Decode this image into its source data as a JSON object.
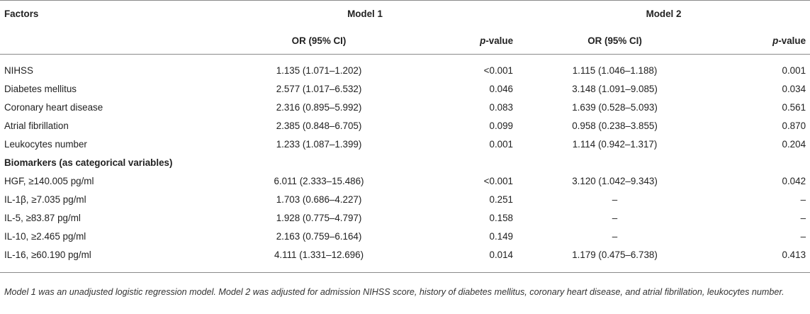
{
  "table": {
    "header": {
      "factors": "Factors",
      "model1": "Model 1",
      "model2": "Model 2",
      "or_ci": "OR (95% CI)",
      "p_italic": "p",
      "p_rest": "-value"
    },
    "rows_a": [
      {
        "factor": "NIHSS",
        "m1_or": "1.135 (1.071–1.202)",
        "m1_p": "<0.001",
        "m2_or": "1.115 (1.046–1.188)",
        "m2_p": "0.001"
      },
      {
        "factor": "Diabetes mellitus",
        "m1_or": "2.577 (1.017–6.532)",
        "m1_p": "0.046",
        "m2_or": "3.148 (1.091–9.085)",
        "m2_p": "0.034"
      },
      {
        "factor": "Coronary heart disease",
        "m1_or": "2.316 (0.895–5.992)",
        "m1_p": "0.083",
        "m2_or": "1.639 (0.528–5.093)",
        "m2_p": "0.561"
      },
      {
        "factor": "Atrial fibrillation",
        "m1_or": "2.385 (0.848–6.705)",
        "m1_p": "0.099",
        "m2_or": "0.958 (0.238–3.855)",
        "m2_p": "0.870"
      },
      {
        "factor": "Leukocytes number",
        "m1_or": "1.233 (1.087–1.399)",
        "m1_p": "0.001",
        "m2_or": "1.114 (0.942–1.317)",
        "m2_p": "0.204"
      }
    ],
    "section_label": "Biomarkers (as categorical variables)",
    "rows_b": [
      {
        "factor": "HGF, ≥140.005 pg/ml",
        "m1_or": "6.011 (2.333–15.486)",
        "m1_p": "<0.001",
        "m2_or": "3.120 (1.042–9.343)",
        "m2_p": "0.042"
      },
      {
        "factor": "IL-1β, ≥7.035 pg/ml",
        "m1_or": "1.703 (0.686–4.227)",
        "m1_p": "0.251",
        "m2_or": "–",
        "m2_p": "–"
      },
      {
        "factor": "IL-5, ≥83.87 pg/ml",
        "m1_or": "1.928 (0.775–4.797)",
        "m1_p": "0.158",
        "m2_or": "–",
        "m2_p": "–"
      },
      {
        "factor": "IL-10, ≥2.465 pg/ml",
        "m1_or": "2.163 (0.759–6.164)",
        "m1_p": "0.149",
        "m2_or": "–",
        "m2_p": "–"
      },
      {
        "factor": "IL-16, ≥60.190 pg/ml",
        "m1_or": "4.111 (1.331–12.696)",
        "m1_p": "0.014",
        "m2_or": "1.179 (0.475–6.738)",
        "m2_p": "0.413"
      }
    ]
  },
  "footnote": "Model 1 was an unadjusted logistic regression model. Model 2 was adjusted for admission NIHSS score, history of diabetes mellitus, coronary heart disease, and atrial fibrillation, leukocytes number."
}
